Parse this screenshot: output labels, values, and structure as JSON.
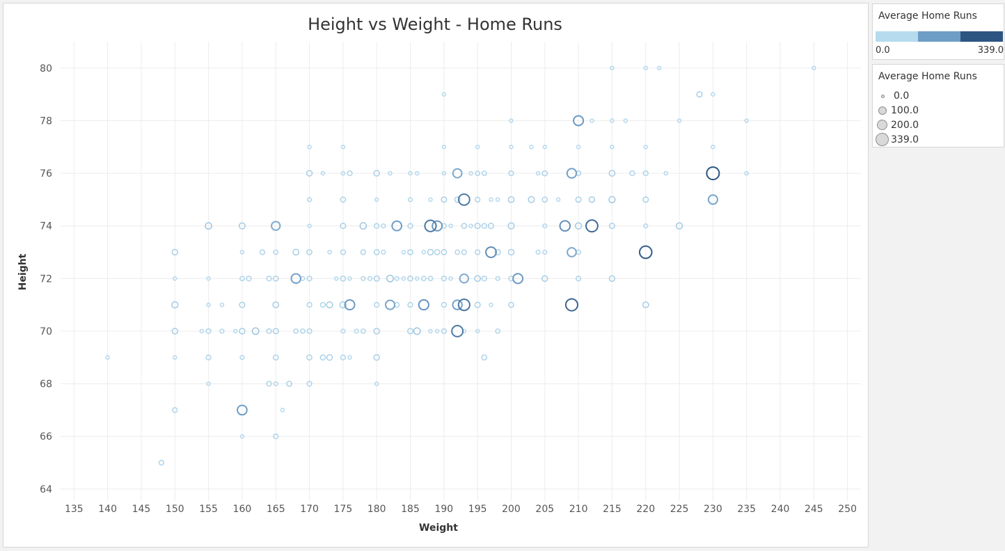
{
  "chart_data": {
    "type": "scatter",
    "title": "Height vs Weight - Home Runs",
    "xlabel": "Weight",
    "ylabel": "Height",
    "xlim": [
      133,
      252
    ],
    "ylim": [
      63.6,
      81
    ],
    "xticks": [
      135,
      140,
      145,
      150,
      155,
      160,
      165,
      170,
      175,
      180,
      185,
      190,
      195,
      200,
      205,
      210,
      215,
      220,
      225,
      230,
      235,
      240,
      245,
      250
    ],
    "yticks": [
      64,
      66,
      68,
      70,
      72,
      74,
      76,
      78,
      80
    ],
    "grid": true,
    "marker": "open circle",
    "size_and_color_encode": "Average Home Runs",
    "points": [
      [
        140,
        69,
        5
      ],
      [
        148,
        65,
        20
      ],
      [
        150,
        73,
        35
      ],
      [
        150,
        72,
        5
      ],
      [
        150,
        71,
        50
      ],
      [
        150,
        70,
        35
      ],
      [
        150,
        69,
        5
      ],
      [
        150,
        67,
        20
      ],
      [
        154,
        70,
        5
      ],
      [
        155,
        74,
        55
      ],
      [
        155,
        72,
        5
      ],
      [
        155,
        71,
        5
      ],
      [
        155,
        70,
        20
      ],
      [
        155,
        69,
        20
      ],
      [
        155,
        68,
        5
      ],
      [
        157,
        71,
        5
      ],
      [
        157,
        70,
        10
      ],
      [
        159,
        70,
        5
      ],
      [
        160,
        74,
        45
      ],
      [
        160,
        73,
        5
      ],
      [
        160,
        72,
        15
      ],
      [
        160,
        71,
        30
      ],
      [
        160,
        70,
        35
      ],
      [
        160,
        69,
        10
      ],
      [
        160,
        67,
        170
      ],
      [
        160,
        66,
        5
      ],
      [
        161,
        72,
        20
      ],
      [
        162,
        70,
        60
      ],
      [
        163,
        73,
        20
      ],
      [
        164,
        72,
        20
      ],
      [
        164,
        70,
        20
      ],
      [
        164,
        68,
        20
      ],
      [
        165,
        74,
        130
      ],
      [
        165,
        73,
        15
      ],
      [
        165,
        72,
        25
      ],
      [
        165,
        71,
        40
      ],
      [
        165,
        70,
        30
      ],
      [
        165,
        69,
        25
      ],
      [
        165,
        68,
        10
      ],
      [
        165,
        66,
        20
      ],
      [
        166,
        67,
        5
      ],
      [
        167,
        68,
        25
      ],
      [
        168,
        73,
        40
      ],
      [
        168,
        72,
        160
      ],
      [
        168,
        70,
        15
      ],
      [
        169,
        72,
        10
      ],
      [
        169,
        70,
        15
      ],
      [
        170,
        77,
        5
      ],
      [
        170,
        76,
        35
      ],
      [
        170,
        75,
        10
      ],
      [
        170,
        74,
        5
      ],
      [
        170,
        73,
        25
      ],
      [
        170,
        72,
        20
      ],
      [
        170,
        71,
        20
      ],
      [
        170,
        70,
        20
      ],
      [
        170,
        69,
        25
      ],
      [
        170,
        68,
        20
      ],
      [
        172,
        76,
        5
      ],
      [
        172,
        71,
        20
      ],
      [
        172,
        69,
        25
      ],
      [
        173,
        73,
        5
      ],
      [
        173,
        71,
        45
      ],
      [
        173,
        69,
        35
      ],
      [
        174,
        72,
        5
      ],
      [
        175,
        77,
        5
      ],
      [
        175,
        76,
        5
      ],
      [
        175,
        75,
        25
      ],
      [
        175,
        74,
        30
      ],
      [
        175,
        73,
        20
      ],
      [
        175,
        72,
        25
      ],
      [
        175,
        71,
        50
      ],
      [
        175,
        70,
        10
      ],
      [
        175,
        69,
        20
      ],
      [
        176,
        76,
        20
      ],
      [
        176,
        72,
        5
      ],
      [
        176,
        71,
        180
      ],
      [
        176,
        69,
        5
      ],
      [
        177,
        70,
        10
      ],
      [
        178,
        74,
        55
      ],
      [
        178,
        73,
        20
      ],
      [
        178,
        72,
        10
      ],
      [
        178,
        70,
        15
      ],
      [
        179,
        72,
        10
      ],
      [
        180,
        76,
        35
      ],
      [
        180,
        75,
        5
      ],
      [
        180,
        74,
        20
      ],
      [
        180,
        73,
        25
      ],
      [
        180,
        72,
        30
      ],
      [
        180,
        71,
        20
      ],
      [
        180,
        70,
        35
      ],
      [
        180,
        69,
        35
      ],
      [
        180,
        68,
        5
      ],
      [
        181,
        74,
        10
      ],
      [
        181,
        73,
        10
      ],
      [
        182,
        72,
        60
      ],
      [
        182,
        71,
        150
      ],
      [
        182,
        76,
        5
      ],
      [
        183,
        74,
        170
      ],
      [
        183,
        72,
        10
      ],
      [
        183,
        71,
        20
      ],
      [
        184,
        72,
        5
      ],
      [
        184,
        73,
        5
      ],
      [
        185,
        76,
        5
      ],
      [
        185,
        75,
        10
      ],
      [
        185,
        74,
        20
      ],
      [
        185,
        73,
        25
      ],
      [
        185,
        72,
        25
      ],
      [
        185,
        71,
        20
      ],
      [
        185,
        70,
        30
      ],
      [
        186,
        70,
        60
      ],
      [
        186,
        76,
        5
      ],
      [
        186,
        72,
        5
      ],
      [
        187,
        71,
        190
      ],
      [
        187,
        72,
        15
      ],
      [
        187,
        73,
        5
      ],
      [
        188,
        75,
        5
      ],
      [
        188,
        74,
        260
      ],
      [
        188,
        73,
        35
      ],
      [
        188,
        72,
        15
      ],
      [
        188,
        70,
        5
      ],
      [
        189,
        74,
        180
      ],
      [
        189,
        73,
        25
      ],
      [
        189,
        70,
        5
      ],
      [
        190,
        79,
        5
      ],
      [
        190,
        77,
        5
      ],
      [
        190,
        76,
        5
      ],
      [
        190,
        75,
        30
      ],
      [
        190,
        74,
        20
      ],
      [
        190,
        73,
        25
      ],
      [
        190,
        72,
        20
      ],
      [
        190,
        71,
        20
      ],
      [
        190,
        70,
        20
      ],
      [
        191,
        74,
        5
      ],
      [
        191,
        72,
        5
      ],
      [
        192,
        76,
        140
      ],
      [
        192,
        75,
        30
      ],
      [
        192,
        73,
        15
      ],
      [
        192,
        71,
        160
      ],
      [
        192,
        70,
        250
      ],
      [
        193,
        75,
        250
      ],
      [
        193,
        74,
        25
      ],
      [
        193,
        73,
        20
      ],
      [
        193,
        72,
        130
      ],
      [
        193,
        71,
        260
      ],
      [
        193,
        70,
        5
      ],
      [
        194,
        76,
        5
      ],
      [
        194,
        74,
        5
      ],
      [
        195,
        77,
        5
      ],
      [
        195,
        76,
        15
      ],
      [
        195,
        75,
        20
      ],
      [
        195,
        74,
        30
      ],
      [
        195,
        73,
        20
      ],
      [
        195,
        72,
        40
      ],
      [
        195,
        71,
        30
      ],
      [
        195,
        70,
        5
      ],
      [
        196,
        76,
        15
      ],
      [
        196,
        74,
        20
      ],
      [
        196,
        72,
        20
      ],
      [
        196,
        69,
        25
      ],
      [
        197,
        75,
        5
      ],
      [
        197,
        74,
        30
      ],
      [
        197,
        73,
        210
      ],
      [
        197,
        71,
        5
      ],
      [
        198,
        75,
        5
      ],
      [
        198,
        73,
        30
      ],
      [
        198,
        72,
        10
      ],
      [
        198,
        70,
        15
      ],
      [
        200,
        78,
        5
      ],
      [
        200,
        77,
        5
      ],
      [
        200,
        76,
        20
      ],
      [
        200,
        75,
        40
      ],
      [
        200,
        74,
        45
      ],
      [
        200,
        73,
        35
      ],
      [
        200,
        72,
        20
      ],
      [
        200,
        71,
        25
      ],
      [
        201,
        72,
        180
      ],
      [
        203,
        77,
        5
      ],
      [
        203,
        75,
        45
      ],
      [
        204,
        73,
        10
      ],
      [
        204,
        76,
        5
      ],
      [
        205,
        77,
        5
      ],
      [
        205,
        76,
        25
      ],
      [
        205,
        75,
        25
      ],
      [
        205,
        74,
        10
      ],
      [
        205,
        73,
        10
      ],
      [
        205,
        72,
        35
      ],
      [
        207,
        75,
        5
      ],
      [
        208,
        74,
        200
      ],
      [
        209,
        76,
        160
      ],
      [
        209,
        73,
        140
      ],
      [
        209,
        71,
        300
      ],
      [
        210,
        78,
        180
      ],
      [
        210,
        77,
        5
      ],
      [
        210,
        76,
        20
      ],
      [
        210,
        75,
        30
      ],
      [
        210,
        74,
        50
      ],
      [
        210,
        73,
        15
      ],
      [
        210,
        72,
        20
      ],
      [
        212,
        78,
        5
      ],
      [
        212,
        75,
        35
      ],
      [
        212,
        74,
        290
      ],
      [
        215,
        80,
        5
      ],
      [
        215,
        78,
        5
      ],
      [
        215,
        77,
        5
      ],
      [
        215,
        76,
        40
      ],
      [
        215,
        75,
        50
      ],
      [
        215,
        74,
        30
      ],
      [
        215,
        72,
        35
      ],
      [
        217,
        78,
        5
      ],
      [
        218,
        76,
        20
      ],
      [
        220,
        80,
        5
      ],
      [
        220,
        77,
        5
      ],
      [
        220,
        76,
        20
      ],
      [
        220,
        75,
        30
      ],
      [
        220,
        74,
        10
      ],
      [
        220,
        73,
        320
      ],
      [
        220,
        71,
        40
      ],
      [
        222,
        80,
        5
      ],
      [
        223,
        76,
        5
      ],
      [
        225,
        78,
        5
      ],
      [
        225,
        74,
        50
      ],
      [
        228,
        79,
        30
      ],
      [
        230,
        79,
        5
      ],
      [
        230,
        77,
        5
      ],
      [
        230,
        76,
        339
      ],
      [
        230,
        75,
        150
      ],
      [
        235,
        78,
        5
      ],
      [
        235,
        76,
        5
      ],
      [
        245,
        80,
        5
      ]
    ]
  },
  "color_legend": {
    "title": "Average Home Runs",
    "min_label": "0.0",
    "max_label": "339.0",
    "ramp": [
      "#b6dbef",
      "#6e9dc6",
      "#2d5582"
    ]
  },
  "size_legend": {
    "title": "Average Home Runs",
    "entries": [
      {
        "label": "0.0",
        "value": 0
      },
      {
        "label": "100.0",
        "value": 100
      },
      {
        "label": "200.0",
        "value": 200
      },
      {
        "label": "339.0",
        "value": 339
      }
    ]
  }
}
